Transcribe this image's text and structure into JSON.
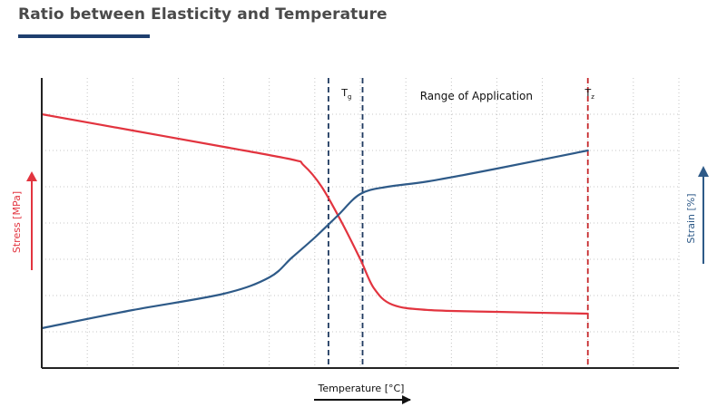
{
  "header": {
    "title": "Ratio between Elasticity and Temperature"
  },
  "colors": {
    "title_text": "#4a4a4a",
    "accent": "#1f3f6e",
    "stress": "#e2343f",
    "strain": "#2e5a88",
    "axis": "#222222",
    "grid": "#b5b5b5"
  },
  "chart_data": {
    "type": "line",
    "grid": true,
    "x_tick_marks": 14,
    "y_tick_marks": 8,
    "xlabel": "Temperature [°C]",
    "xlabel_arrow_color": "#111111",
    "y_left_label": "Stress [MPa]",
    "y_left_arrow_color": "#e2343f",
    "y_right_label": "Strain [%]",
    "y_right_arrow_color": "#2e5a88",
    "series": [
      {
        "key": "stress",
        "color": "#e2343f",
        "x": [
          0,
          2,
          4,
          5.5,
          5.75,
          6.15,
          6.6,
          7.0,
          7.3,
          7.7,
          8.5,
          10,
          12
        ],
        "y": [
          7,
          6.55,
          6.1,
          5.75,
          5.6,
          5.0,
          4.0,
          3.0,
          2.2,
          1.75,
          1.6,
          1.55,
          1.5
        ]
      },
      {
        "key": "strain",
        "color": "#2e5a88",
        "x": [
          0,
          2,
          4,
          5.0,
          5.5,
          6.0,
          6.5,
          7.0,
          7.6,
          8.5,
          10,
          12
        ],
        "y": [
          1.1,
          1.6,
          2.05,
          2.5,
          3.05,
          3.6,
          4.2,
          4.8,
          5.0,
          5.15,
          5.5,
          6.0
        ]
      }
    ],
    "reference_lines": [
      {
        "name": "Tg",
        "label_main": "T",
        "label_sub": "g",
        "x": 6.3,
        "color": "#1f3a60",
        "style": "dashed"
      },
      {
        "name": "Tg-end",
        "label_main": "",
        "label_sub": "",
        "x": 7.05,
        "color": "#1f3a60",
        "style": "dashed"
      },
      {
        "name": "Tz",
        "label_main": "T",
        "label_sub": "z",
        "x": 12.0,
        "color": "#c6282b",
        "style": "dashed"
      }
    ],
    "annotations": [
      {
        "text": "Range of Application",
        "x": 9.55,
        "y": 7.5
      }
    ],
    "xlim": [
      0,
      14
    ],
    "ylim": [
      0,
      8
    ]
  }
}
